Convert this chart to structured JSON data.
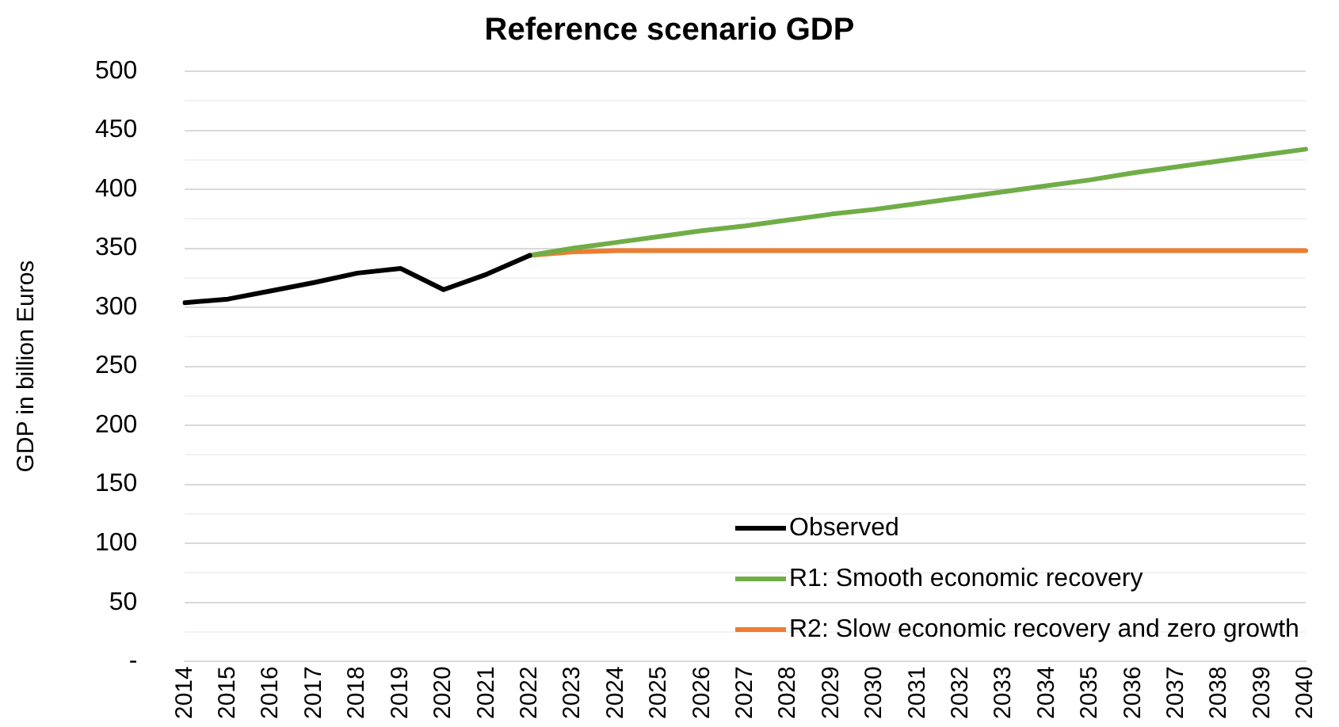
{
  "chart_data": {
    "type": "line",
    "title": "Reference scenario GDP",
    "ylabel": "GDP in billion Euros",
    "categories": [
      "2014",
      "2015",
      "2016",
      "2017",
      "2018",
      "2019",
      "2020",
      "2021",
      "2022",
      "2023",
      "2024",
      "2025",
      "2026",
      "2027",
      "2028",
      "2029",
      "2030",
      "2031",
      "2032",
      "2033",
      "2034",
      "2035",
      "2036",
      "2037",
      "2038",
      "2039",
      "2040"
    ],
    "series": [
      {
        "name": "Observed",
        "color": "#000000",
        "values": [
          304,
          307,
          314,
          321,
          329,
          333,
          315,
          328,
          344,
          null,
          null,
          null,
          null,
          null,
          null,
          null,
          null,
          null,
          null,
          null,
          null,
          null,
          null,
          null,
          null,
          null,
          null
        ]
      },
      {
        "name": "R1: Smooth economic recovery",
        "color": "#70ad47",
        "values": [
          null,
          null,
          null,
          null,
          null,
          null,
          null,
          null,
          344,
          350,
          355,
          360,
          365,
          369,
          374,
          379,
          383,
          388,
          393,
          398,
          403,
          408,
          414,
          419,
          424,
          429,
          434
        ]
      },
      {
        "name": "R2: Slow economic recovery and zero growth",
        "color": "#ed7d31",
        "values": [
          null,
          null,
          null,
          null,
          null,
          null,
          null,
          null,
          344,
          347,
          348,
          348,
          348,
          348,
          348,
          348,
          348,
          348,
          348,
          348,
          348,
          348,
          348,
          348,
          348,
          348,
          348
        ]
      }
    ],
    "ylim": [
      0,
      500
    ],
    "yticks": [
      {
        "value": 0,
        "label": "-"
      },
      {
        "value": 25,
        "label": null
      },
      50,
      {
        "value": 75,
        "label": null
      },
      100,
      {
        "value": 125,
        "label": null
      },
      150,
      {
        "value": 175,
        "label": null
      },
      200,
      {
        "value": 225,
        "label": null
      },
      250,
      {
        "value": 275,
        "label": null
      },
      300,
      {
        "value": 325,
        "label": null
      },
      350,
      {
        "value": 375,
        "label": null
      },
      400,
      {
        "value": 425,
        "label": null
      },
      450,
      {
        "value": 475,
        "label": null
      },
      500
    ],
    "grid": "y",
    "legend": "bottom right",
    "marker": "none",
    "line_style": "solid"
  }
}
